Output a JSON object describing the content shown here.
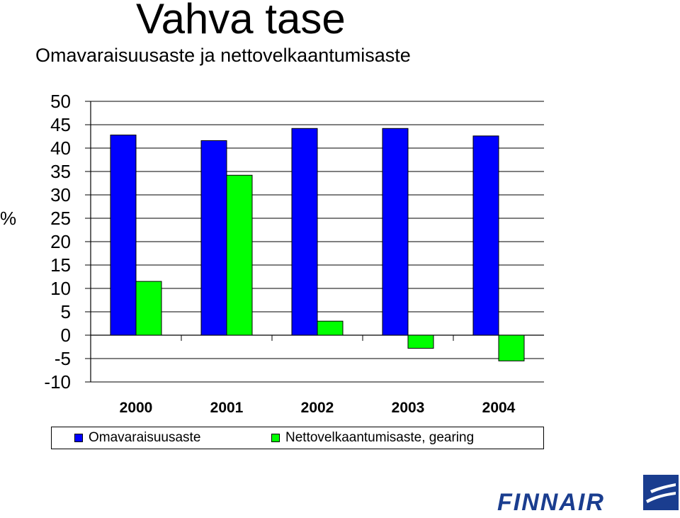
{
  "title": "Vahva tase",
  "subtitle": "Omavaraisuusaste ja nettovelkaantumisaste",
  "logo": {
    "text": "FINNAIR",
    "color": "#1a3d8f"
  },
  "chart_data": {
    "type": "bar",
    "ylabel": "%",
    "categories": [
      "2000",
      "2001",
      "2002",
      "2003",
      "2004"
    ],
    "series": [
      {
        "name": "Omavaraisuusaste",
        "color": "#0000ff",
        "values": [
          42.8,
          41.6,
          44.2,
          44.2,
          42.6
        ]
      },
      {
        "name": "Nettovelkaantumisaste, gearing",
        "color": "#00ff00",
        "values": [
          11.5,
          34.2,
          3.0,
          -2.8,
          -5.5
        ]
      }
    ],
    "ylim": [
      -10,
      50
    ],
    "yticks": [
      50,
      45,
      40,
      35,
      30,
      25,
      20,
      15,
      10,
      5,
      0,
      -5,
      -10
    ],
    "grid": true,
    "legend": "bottom"
  }
}
